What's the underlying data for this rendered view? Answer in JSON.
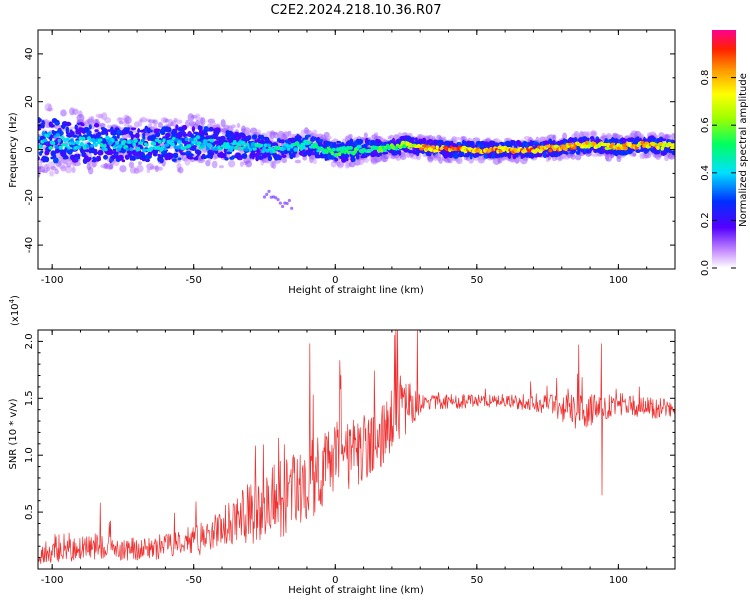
{
  "figure_title": "C2E2.2024.218.10.36.R07",
  "colors": {
    "snr_line": "#ee3030",
    "axis": "#000000",
    "background": "#ffffff"
  },
  "chart_data": [
    {
      "type": "heatmap",
      "name": "spectrogram",
      "title": "",
      "xlabel": "Height of straight line (km)",
      "ylabel": "Frequency (Hz)",
      "xlim": [
        -105,
        120
      ],
      "ylim": [
        -50,
        50
      ],
      "xticks": [
        -100,
        -50,
        0,
        50,
        100
      ],
      "yticks": [
        -40,
        -20,
        0,
        20,
        40
      ],
      "grid": false,
      "colorbar": {
        "label": "Normalized spectral amplitude",
        "range": [
          0.0,
          1.0
        ],
        "ticks": [
          0.0,
          0.2,
          0.4,
          0.6,
          0.8
        ],
        "colormap": "rainbow (white-purple-blue-cyan-green-yellow-orange-red-magenta)"
      },
      "ridge": {
        "description": "spectral band centered near 0 Hz",
        "x": [
          -105,
          -90,
          -75,
          -60,
          -50,
          -40,
          -30,
          -20,
          -10,
          0,
          10,
          20,
          25,
          30,
          40,
          50,
          60,
          70,
          80,
          90,
          100,
          110,
          120
        ],
        "center_hz": [
          4,
          3,
          2,
          2,
          3,
          2,
          1,
          0,
          2,
          -1,
          0,
          1,
          2,
          1,
          0,
          0,
          0,
          0,
          1,
          2,
          1,
          2,
          1
        ],
        "half_width_hz": [
          9,
          8,
          7,
          7,
          7,
          6,
          5,
          4,
          4,
          4,
          4,
          3,
          3,
          3,
          3,
          3,
          3,
          3,
          3,
          3,
          3,
          3,
          3
        ],
        "peak_amplitude": [
          0.45,
          0.45,
          0.45,
          0.45,
          0.45,
          0.45,
          0.45,
          0.5,
          0.5,
          0.55,
          0.55,
          0.6,
          0.65,
          0.9,
          0.9,
          0.9,
          0.9,
          0.9,
          0.9,
          0.8,
          0.85,
          0.85,
          0.7
        ]
      },
      "tail": {
        "x": [
          -25,
          -15
        ],
        "center_hz": [
          -18,
          -24
        ],
        "amplitude": 0.15
      }
    },
    {
      "type": "line",
      "name": "snr",
      "title": "",
      "xlabel": "Height of straight line (km)",
      "ylabel": "SNR (10 * v/v)",
      "ylabel_exponent": "(x10",
      "ylabel_exponent_power": "4",
      "ylabel_exponent_close": ")",
      "xlim": [
        -105,
        120
      ],
      "ylim": [
        0,
        2.1
      ],
      "xticks": [
        -100,
        -50,
        0,
        50,
        100
      ],
      "yticks": [
        0.5,
        1.0,
        1.5,
        2.0
      ],
      "grid": false,
      "series": [
        {
          "name": "SNR",
          "x": [
            -105,
            -95,
            -85,
            -75,
            -65,
            -55,
            -45,
            -40,
            -35,
            -30,
            -25,
            -20,
            -15,
            -10,
            -5,
            0,
            5,
            10,
            15,
            20,
            25,
            30,
            40,
            50,
            60,
            70,
            80,
            85,
            90,
            95,
            100,
            110,
            120
          ],
          "y": [
            0.12,
            0.15,
            0.2,
            0.17,
            0.18,
            0.22,
            0.28,
            0.35,
            0.45,
            0.5,
            0.55,
            0.6,
            0.68,
            0.75,
            0.85,
            0.95,
            1.0,
            1.05,
            1.15,
            1.3,
            1.42,
            1.45,
            1.47,
            1.48,
            1.48,
            1.45,
            1.42,
            1.38,
            1.4,
            1.42,
            1.45,
            1.42,
            1.4
          ],
          "noise_amplitude": [
            0.08,
            0.1,
            0.12,
            0.1,
            0.1,
            0.12,
            0.15,
            0.18,
            0.22,
            0.28,
            0.32,
            0.35,
            0.35,
            0.35,
            0.35,
            0.3,
            0.3,
            0.3,
            0.3,
            0.35,
            0.25,
            0.08,
            0.07,
            0.06,
            0.06,
            0.07,
            0.12,
            0.15,
            0.15,
            0.12,
            0.1,
            0.09,
            0.09
          ],
          "spikes": [
            {
              "x": 22,
              "y": 2.12
            },
            {
              "x": 29,
              "y": 2.1
            },
            {
              "x": 86,
              "y": 1.97
            },
            {
              "x": 94,
              "y": 1.98
            },
            {
              "x": 94.2,
              "y": 0.65
            },
            {
              "x": -83,
              "y": 0.58
            },
            {
              "x": -9,
              "y": 1.98
            },
            {
              "x": 2,
              "y": 1.7
            },
            {
              "x": -20,
              "y": 1.15
            }
          ]
        }
      ]
    }
  ]
}
